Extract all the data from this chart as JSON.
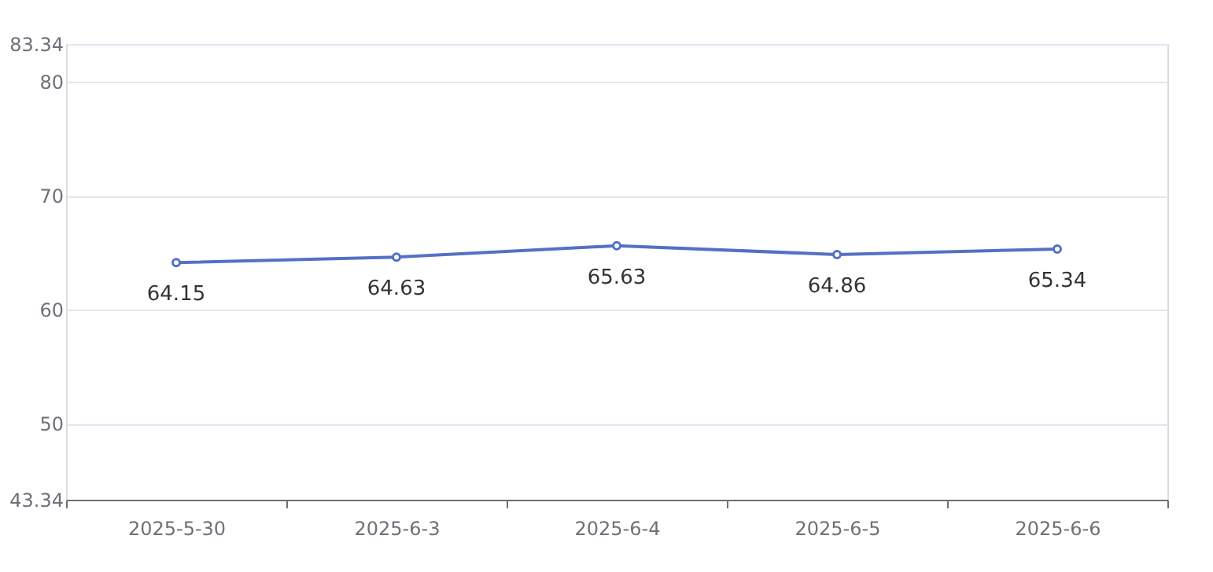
{
  "chart_data": {
    "type": "line",
    "categories": [
      "2025-5-30",
      "2025-6-3",
      "2025-6-4",
      "2025-6-5",
      "2025-6-6"
    ],
    "series": [
      {
        "color": "#5470c6",
        "values": [
          64.15,
          64.63,
          65.63,
          64.86,
          65.34
        ]
      }
    ],
    "ylim": [
      43.34,
      83.34
    ],
    "yticks": [
      43.34,
      50,
      60,
      70,
      80,
      83.34
    ],
    "grid": "y",
    "data_labels": true,
    "marker": "circle",
    "line_style": "solid"
  }
}
